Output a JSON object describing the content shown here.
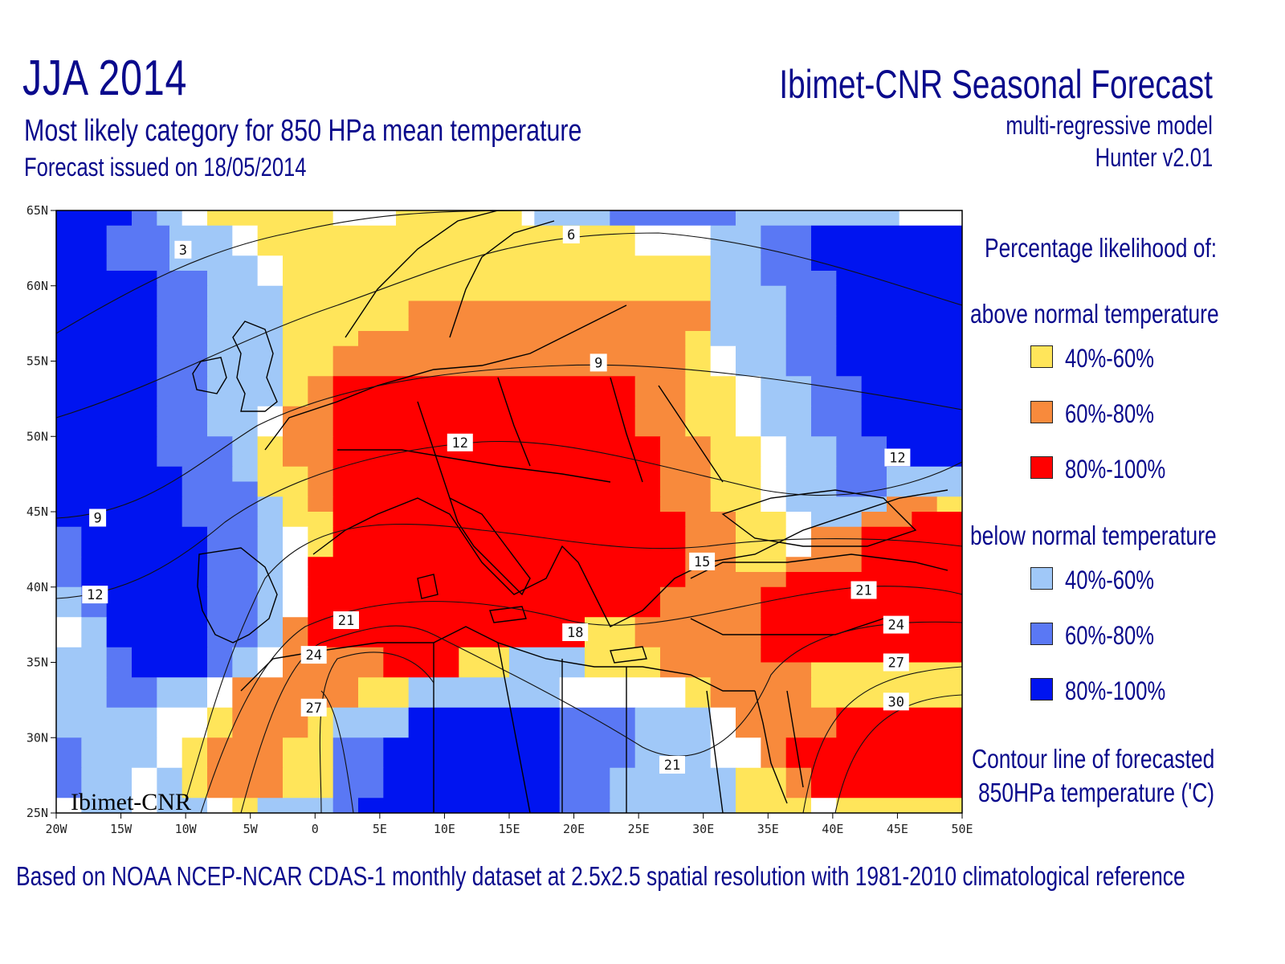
{
  "header": {
    "title_left": "JJA 2014",
    "subtitle_1": "Most likely category for 850 HPa mean temperature",
    "subtitle_2": "Forecast issued on 18/05/2014",
    "title_right": "Ibimet-CNR Seasonal Forecast",
    "model_1": "multi-regressive model",
    "model_2": "Hunter v2.01"
  },
  "footer": "Based on NOAA NCEP-NCAR CDAS-1 monthly dataset at 2.5x2.5 spatial resolution with 1981-2010 climatological reference",
  "watermark": "Ibimet-CNR",
  "legend": {
    "heading": "Percentage likelihood of:",
    "above_label": "above normal temperature",
    "below_label": "below normal temperature",
    "above_items": [
      {
        "label": "40%-60%",
        "color": "#ffe55a"
      },
      {
        "label": "60%-80%",
        "color": "#f88a3c"
      },
      {
        "label": "80%-100%",
        "color": "#ff0000"
      }
    ],
    "below_items": [
      {
        "label": "40%-60%",
        "color": "#a0c8f8"
      },
      {
        "label": "60%-80%",
        "color": "#5a78f4"
      },
      {
        "label": "80%-100%",
        "color": "#0014f0"
      }
    ],
    "contour_label_1": "Contour line of forecasted",
    "contour_label_2": "850HPa temperature ('C)"
  },
  "map": {
    "lon_range": [
      -20,
      50
    ],
    "lat_range": [
      25,
      65
    ],
    "grid_resolution_deg": 2.5,
    "lon_ticks": [
      "20W",
      "15W",
      "10W",
      "5W",
      "0",
      "5E",
      "10E",
      "15E",
      "20E",
      "25E",
      "30E",
      "35E",
      "40E",
      "45E",
      "50E"
    ],
    "lat_ticks": [
      "65N",
      "60N",
      "55N",
      "50N",
      "45N",
      "40N",
      "35N",
      "30N",
      "25N"
    ],
    "category_codes": {
      "Y": "above 40-60%",
      "O": "above 60-80%",
      "R": "above 80-100%",
      "L": "below 40-60%",
      "M": "below 60-80%",
      "B": "below 80-100%",
      "W": "no category"
    },
    "category_colors": {
      "Y": "#ffe55a",
      "O": "#f88a3c",
      "R": "#ff0000",
      "L": "#a0c8f8",
      "M": "#5a78f4",
      "B": "#0014f0",
      "W": "#ffffff"
    },
    "rows_north_to_south": [
      "BBBBBBMMLLWWYYYYYYYYYYWWWWWYYYYYYYYYYWLLLLLLMMMMMMMMMMLLLLLLLLLLLLLWWWWW",
      "BBBBMMMMMLLLLLWWYYYYYYYYYYYYYYYYYYYYYYYYYYYYYYWWWWWWLLLLMMMMBBBBBBBBBBBB",
      "BBBBMMMMMLLLLLWWYYYYYYYYYYYYYYYYYYYYYYYYYYYYYYWWWWWWLLLLMMMMBBBBBBBBBBBB",
      "BBBBMMMMMLLLLLLLWWYYYYYYYYYYYYYYYYYYYYYYYYYYYYYYYYYYLLLLMMMMBBBBBBBBBBBB",
      "BBBBBBBBMMMMLLLLWWYYYYYYYYYYYYYYYYYYYYYYYYYYYYYYYYYYLLLLMMMMMMBBBBBBBBBB",
      "BBBBBBBBMMMMLLLLLLYYYYYYYYYYYYYYYYYYYYYYYYYYYYYYYYYYLLLLLLMMMMBBBBBBBBBB",
      "BBBBBBBBMMMMLLLLLLYYYYYYYYYYOOOOOOOOOOOOOOOOOOOOOOOOLLLLLLMMMMBBBBBBBBBB",
      "BBBBBBBBMMMMLLLLLLYYYYYYYYYYOOOOOOOOOOOOOOOOOOOOOOOOLLLLLLMMMMBBBBBBBBBB",
      "BBBBBBBBMMMMLLLLLLYYYYYYOOOOOOOOOOOOOOOOOOOOOOOOOOYYLLLLLLMMMMBBBBBBBBBB",
      "BBBBBBBBMMMMLLLLLLYYYYOOOOOOOOOOOOOOOOOOOOOOOOOOOOYYWWLLLLMMMMBBBBBBBBBB",
      "BBBBBBBBMMMMLLLLLLYYYYOOOOOOOOOOOOOOOOOOOOOOOOOOOOYYWWLLLLMMMMBBBBBBBBBB",
      "BBBBBBBBMMMMLLLLLLYYOORRRRRRRRRRRRRRRRRRRRRRRROOOOYYYYWWLLLLMMMMBBBBBBBB",
      "BBBBBBBBMMMMLLLLLLYYOORRRRRRRRRRRRRRRRRRRRRRRROOOOYYYYWWLLLLMMMMBBBBBBBB",
      "BBBBBBBBMMMMLLLLWWOOOORRRRRRRRRRRRRRRRRRRRRRRROOOOYYYYWWLLLLMMMMBBBBBBBB",
      "BBBBBBBBMMMMLLLLWWOOOORRRRRRRRRRRRRRRRRRRRRRRROOOOYYYYWWLLLLMMMMBBBBBBBB",
      "BBBBBBBBMMMMMMLLYYOOOORRRRRRRRRRRRRRRRRRRRRRRRRROOOOYYYYWWLLLLMMMMBBBBBB",
      "BBBBBBBBMMMMMMLLYYOOOORRRRRRRRRRRRRRRRRRRRRRRRRROOOOYYYYWWLLLLMMMMBBBBBB",
      "BBBBBBBBBBMMMMLLYYYYOORRRRRRRRRRRRRRRRRRRRRRRRRROOOOYYYYWWLLLLMMMMLLLLLL",
      "BBBBBBBBBBMMMMMMYYYYOORRRRRRRRRRRRRRRRRRRRRRRRRROOOOYYYYWWLLLLMMMMLLLLLL",
      "BBBBBBBBBBMMMMMMLLYYOORRRRRRRRRRRRRRRRRRRRRRRRRROOOOYYYYWWLLLLLLLLOOOOYY",
      "BBBBBBBBBBMMMMMMLLYYYYRRRRRRRRRRRRRRRRRRRRRRRRRRRROOOOYYYYWWLLLLOOOORRRR",
      "MMBBBBBBBBBBMMMMLLWWYYRRRRRRRRRRRRRRRRRRRRRRRRRRRROOOOYYYYWWOOOORRRRRRRR",
      "MMBBBBBBBBBBMMMMLLWWYYRRRRRRRRRRRRRRRRRRRRRRRRRRRROOOOYYYYWWOOOORRRRRRRR",
      "MMBBBBBBBBBBMMMMLLWWRRRRRRRRRRRRRRRRRRRRRRRRRRRRRROOOOYYYYOOOOOORRRRRRRR",
      "MMBBBBBBBBBBMMMMLLWWRRRRRRRRRRRRRRRRRRRRRRRRRRRRRROOOOOOOORRRRRRRRRRRRRR",
      "LLMMBBBBBBBBMMMMLLWWRRRRRRRRRRRRRRRRRRRRRRRRRRRROOOOOOOORRRRRRRRRRRRRRRR",
      "LLMMBBBBBBBBMMMMLLWWRRRRRRRRRRRRRRRRRRRRRRRRRRRROOOOOOOORRRRRRRRRRRRRRRR",
      "WWLLBBBBBBBBMMMMLLOORRRRRRRRRRRRRRRRRRRRRRYYYYOOOOOOOOOORRRRRRRRRRRRRRRR",
      "WWLLBBBBBBBBMMMMLLOORRRRRRRRRRRRRRRRRRRRRRYYYYOOOOOOOOOORRRRRRRRRRRRRRRR",
      "LLLLMMBBBBBBMMLLWWOOOOOOOORRRRRRYYYYLLLLLLYYYYYYOOOOOOOORRRRRRRRRRRRRRRR",
      "LLLLMMBBBBBBMMLLWWOOOOOOOORRRRRRYYYYLLLLLLYYYYYYOOOOOOOOOOOOYYYYYYYYYYYY",
      "LLLLMMMMLLLLWWOOOOOOOOOOYYYYLLLLLLLLLLLLWWWWWWWWWWYYOOOOOOOOYYYYYYYYYYYY",
      "LLLLMMMMLLLLWWOOOOOOOOOOYYYYLLLLLLLLLLLLWWWWWWWWWWYYOOOOOOOOYYYYYYYYYYYY",
      "LLLLLLLLWWWWYYOOOOOOYYLLLLLLBBBBBBBBBBBBMMMMMMLLLLLLWWOOOOOOOORRRRRRRRRR",
      "LLLLLLLLWWWWYYOOOOOOYYLLLLLLBBBBBBBBBBBBMMMMMMLLLLLLWWOOOOOOOORRRRRRRRRR",
      "MMLLLLLLWWYYOOOOOOYYYYMMMMBBBBBBBBBBBBBBMMMMMMLLLLLLWWWWOORRRRRRRRRRRRRR",
      "MMLLLLLLWWYYOOOOOOYYYYMMMMBBBBBBBBBBBBBBMMMMMMLLLLLLWWWWOORRRRRRRRRRRRRR",
      "MMLLLLWWLLYYOOOOOOYYYYMMMMBBBBBBBBBBBBBBMMMMLLLLLLLLLLYYYYOORRRRRRRRRRRR",
      "MMLLLLWWLLYYOOOOOOYYYYMMMMBBBBBBBBBBBBBBMMMMLLLLLLLLLLYYYYOORRRRRRRRRRRR",
      "WWLLLLWWLLLLWWYYLLLLLLMMBBBBBBBBBBBBBBBBMMMMLLLLLLLLLLYYYYYYWWYYYYYYYYYY"
    ],
    "contour_labels": [
      {
        "text": "3",
        "lon": -10.2,
        "lat": 62.4
      },
      {
        "text": "6",
        "lon": 19.8,
        "lat": 63.4
      },
      {
        "text": "9",
        "lon": 21.9,
        "lat": 54.9
      },
      {
        "text": "9",
        "lon": -16.8,
        "lat": 44.6
      },
      {
        "text": "12",
        "lon": 11.2,
        "lat": 49.6
      },
      {
        "text": "12",
        "lon": 45.0,
        "lat": 48.6
      },
      {
        "text": "12",
        "lon": -17.0,
        "lat": 39.5
      },
      {
        "text": "15",
        "lon": 29.9,
        "lat": 41.7
      },
      {
        "text": "18",
        "lon": 20.1,
        "lat": 37.0
      },
      {
        "text": "21",
        "lon": 2.4,
        "lat": 37.8
      },
      {
        "text": "21",
        "lon": 42.4,
        "lat": 39.8
      },
      {
        "text": "21",
        "lon": 27.6,
        "lat": 28.2
      },
      {
        "text": "24",
        "lon": -0.1,
        "lat": 35.5
      },
      {
        "text": "24",
        "lon": 44.9,
        "lat": 37.5
      },
      {
        "text": "27",
        "lon": -0.1,
        "lat": 32.0
      },
      {
        "text": "27",
        "lon": 44.9,
        "lat": 35.0
      },
      {
        "text": "30",
        "lon": 44.9,
        "lat": 32.4
      }
    ]
  }
}
